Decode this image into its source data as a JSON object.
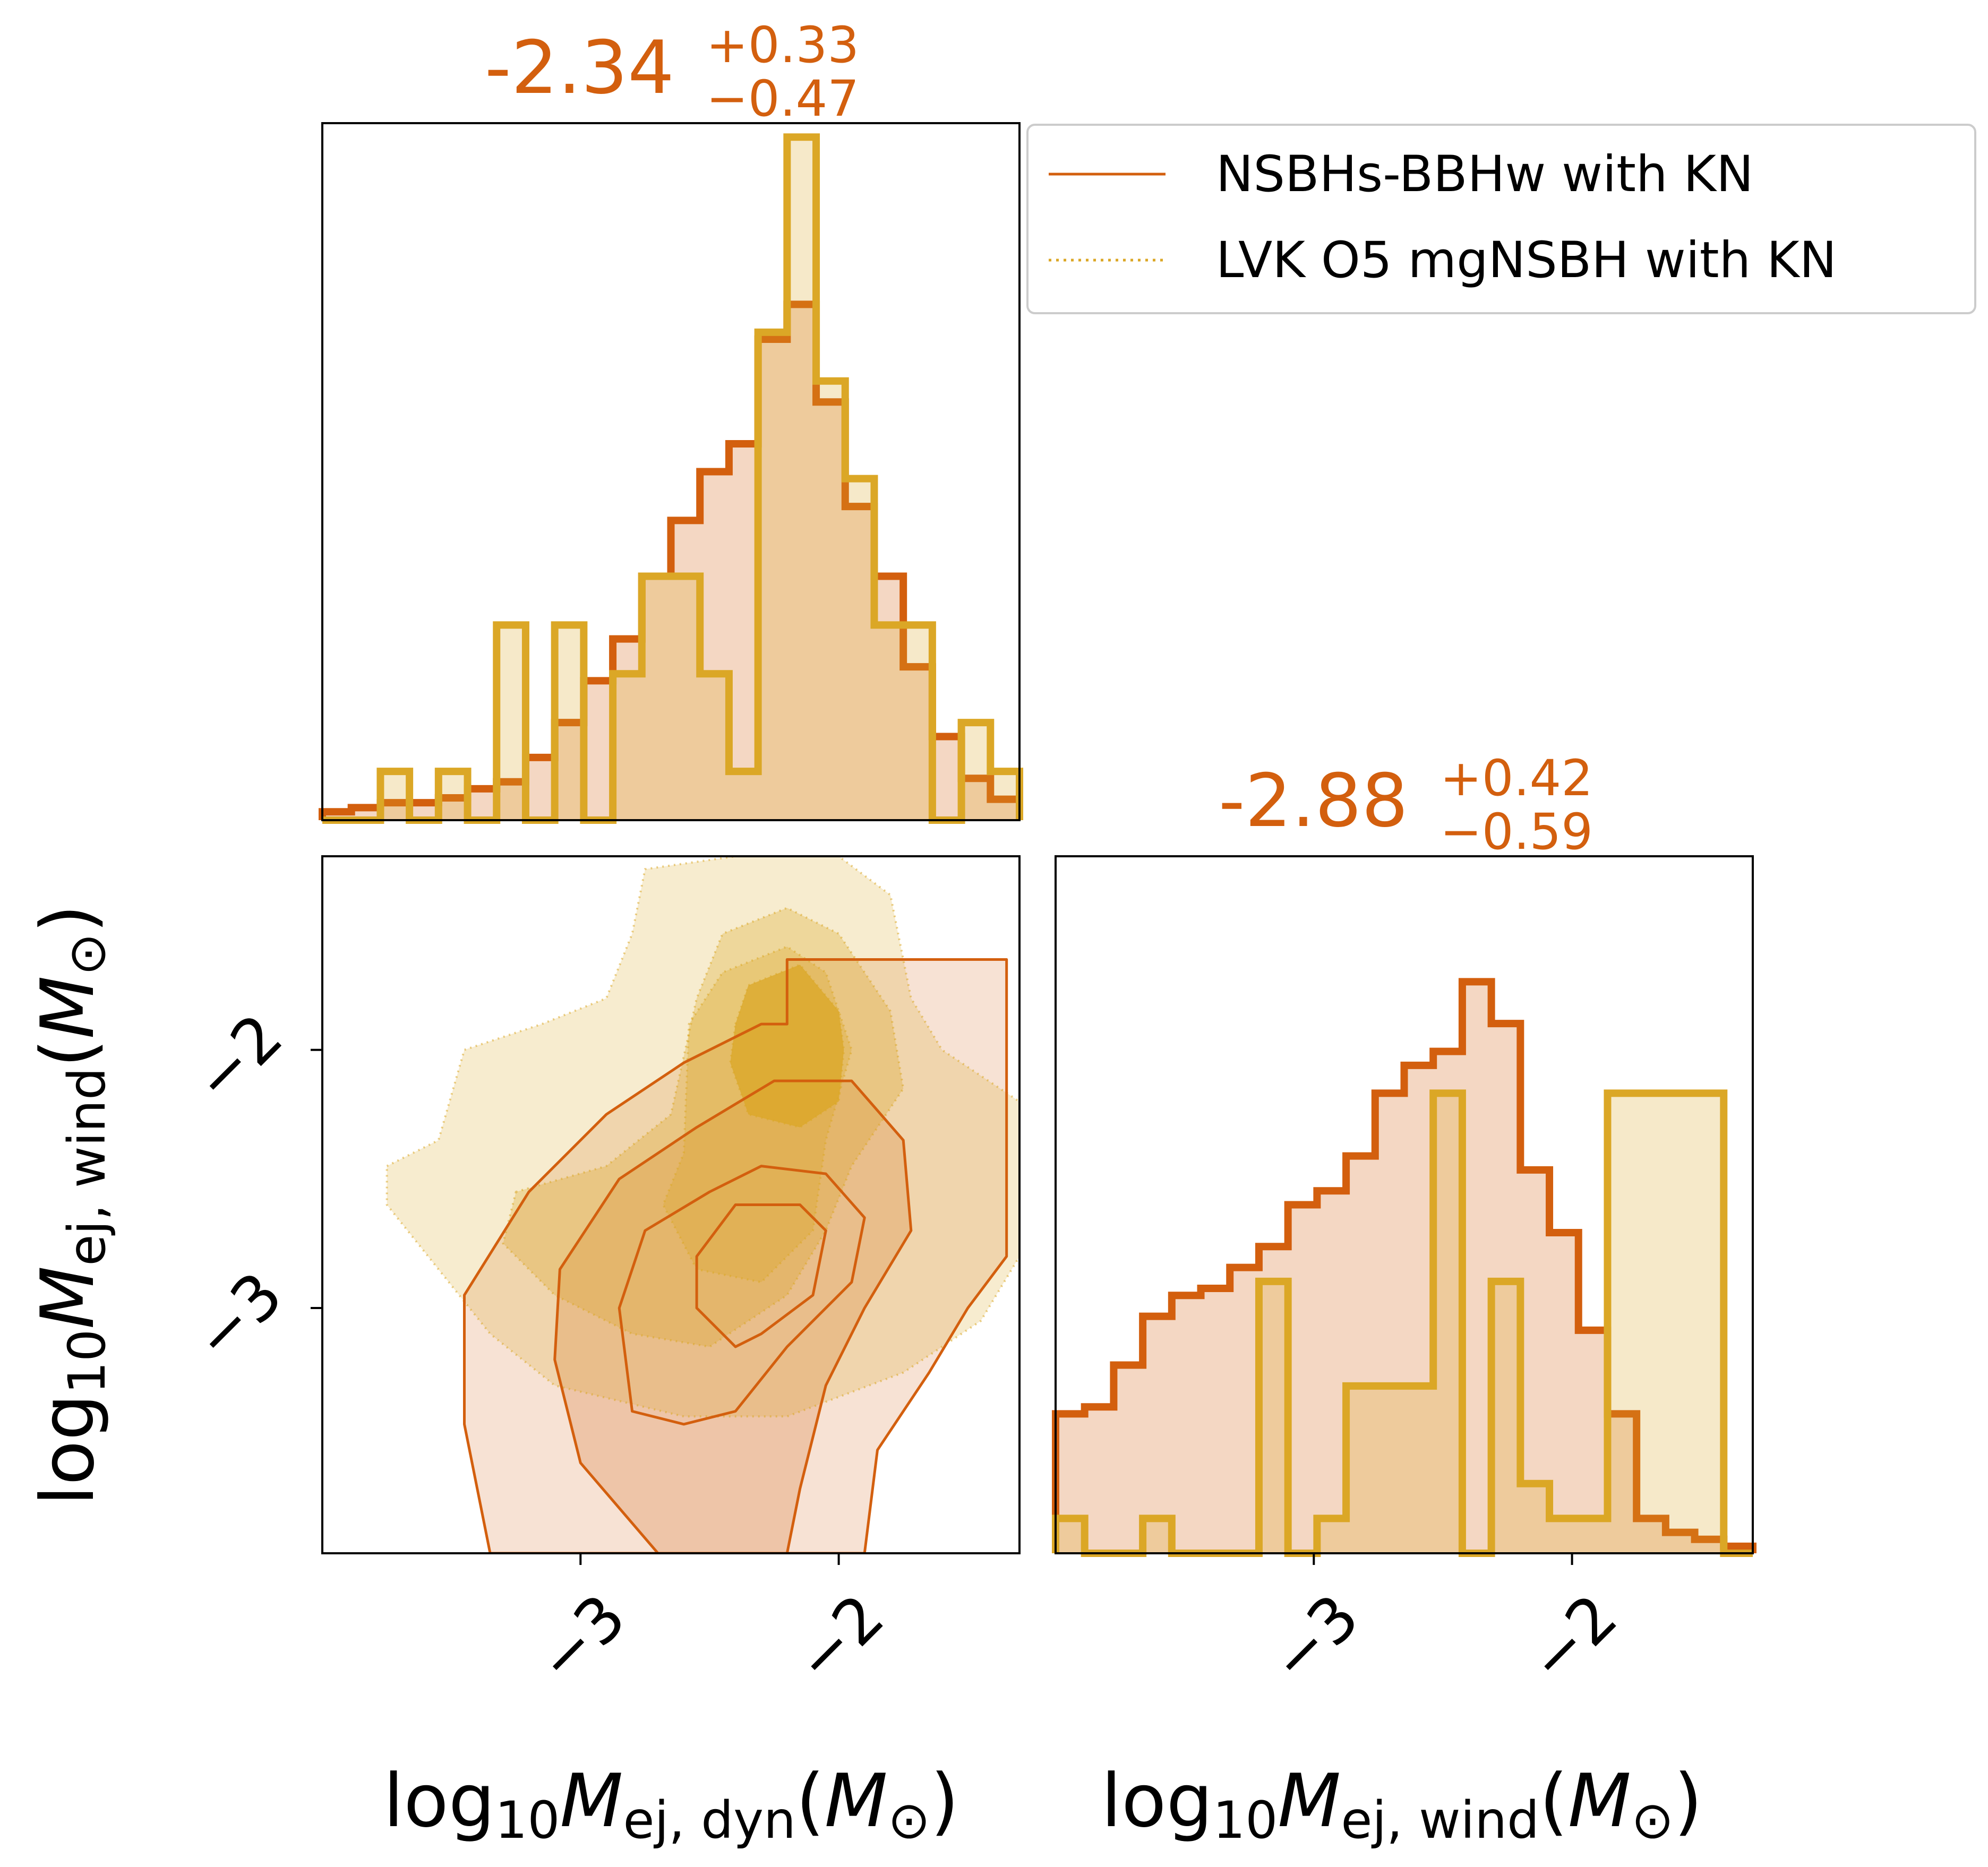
{
  "legend": {
    "placement": "top-right",
    "entries": [
      {
        "label": "NSBHs-BBHw with KN",
        "color": "#d35f0e",
        "line_style": "solid"
      },
      {
        "label": "LVK O5 mgNSBH with KN",
        "color": "#dba726",
        "line_style": "dotted"
      }
    ]
  },
  "summaries": [
    {
      "parameter": "log10 M_ej,dyn",
      "median": "-2.34",
      "upper": "+0.33",
      "lower": "−0.47"
    },
    {
      "parameter": "log10 M_ej,wind",
      "median": "-2.88",
      "upper": "+0.42",
      "lower": "−0.59"
    }
  ],
  "axis_labels": {
    "dyn": {
      "base": "log",
      "sub10": "10",
      "M": "M",
      "sub": "ej, dyn",
      "lp": "(",
      "sym": "M",
      "sun": "⊙",
      "rp": ")"
    },
    "wind": {
      "base": "log",
      "sub10": "10",
      "M": "M",
      "sub": "ej, wind",
      "lp": "(",
      "sym": "M",
      "sun": "⊙",
      "rp": ")"
    }
  },
  "ticks": {
    "dyn_x": [
      "−3",
      "−2"
    ],
    "wind_x": [
      "−3",
      "−2"
    ],
    "wind_y": [
      "−2",
      "−3"
    ]
  },
  "chart_data": [
    {
      "type": "histogram",
      "panel": "dyn-marginal",
      "xlim": [
        -4.0,
        -1.3
      ],
      "bin_edges": [
        -4.0,
        -3.8875,
        -3.775,
        -3.6625,
        -3.55,
        -3.4375,
        -3.325,
        -3.2125,
        -3.1,
        -2.9875,
        -2.875,
        -2.7625,
        -2.65,
        -2.5375,
        -2.425,
        -2.3125,
        -2.2,
        -2.0875,
        -1.975,
        -1.8625,
        -1.75,
        -1.6375,
        -1.525,
        -1.4125,
        -1.3
      ],
      "series": [
        {
          "name": "NSBHs-BBHw with KN",
          "color": "#d35f0e",
          "values": [
            0.012,
            0.018,
            0.025,
            0.025,
            0.032,
            0.045,
            0.055,
            0.09,
            0.14,
            0.2,
            0.26,
            0.35,
            0.43,
            0.5,
            0.54,
            0.69,
            0.74,
            0.6,
            0.45,
            0.35,
            0.22,
            0.12,
            0.06,
            0.03
          ]
        },
        {
          "name": "LVK O5 mgNSBH with KN",
          "color": "#dba726",
          "values": [
            0.0,
            0.0,
            0.07,
            0.0,
            0.07,
            0.0,
            0.28,
            0.0,
            0.28,
            0.0,
            0.21,
            0.35,
            0.35,
            0.21,
            0.07,
            0.7,
            0.98,
            0.63,
            0.49,
            0.28,
            0.28,
            0.0,
            0.14,
            0.07
          ]
        }
      ]
    },
    {
      "type": "histogram",
      "panel": "wind-marginal",
      "xlim": [
        -4.0,
        -1.3
      ],
      "bin_edges": [
        -4.0,
        -3.8875,
        -3.775,
        -3.6625,
        -3.55,
        -3.4375,
        -3.325,
        -3.2125,
        -3.1,
        -2.9875,
        -2.875,
        -2.7625,
        -2.65,
        -2.5375,
        -2.425,
        -2.3125,
        -2.2,
        -2.0875,
        -1.975,
        -1.8625,
        -1.75,
        -1.6375,
        -1.525,
        -1.4125,
        -1.3
      ],
      "series": [
        {
          "name": "NSBHs-BBHw with KN",
          "color": "#d35f0e",
          "values": [
            0.2,
            0.21,
            0.27,
            0.34,
            0.37,
            0.38,
            0.41,
            0.44,
            0.5,
            0.52,
            0.57,
            0.66,
            0.7,
            0.72,
            0.82,
            0.76,
            0.55,
            0.46,
            0.32,
            0.2,
            0.05,
            0.03,
            0.02,
            0.01
          ]
        },
        {
          "name": "LVK O5 mgNSBH with KN",
          "color": "#dba726",
          "values": [
            0.05,
            0.0,
            0.0,
            0.05,
            0.0,
            0.0,
            0.0,
            0.39,
            0.0,
            0.05,
            0.24,
            0.24,
            0.24,
            0.66,
            0.0,
            0.39,
            0.1,
            0.05,
            0.05,
            0.66,
            0.66,
            0.66,
            0.66,
            0.0
          ]
        }
      ]
    },
    {
      "type": "contour",
      "panel": "joint",
      "x": "log10 M_ej,dyn",
      "y": "log10 M_ej,wind",
      "xlim": [
        -4.0,
        -1.3
      ],
      "ylim": [
        -3.95,
        -1.25
      ],
      "series": [
        {
          "name": "LVK O5 mgNSBH with KN",
          "color": "#dba726",
          "style": "filled-dotted",
          "levels": [
            {
              "level": 1,
              "points": [
                [
                  -3.75,
                  -2.45
                ],
                [
                  -3.55,
                  -2.35
                ],
                [
                  -3.45,
                  -2.0
                ],
                [
                  -3.15,
                  -1.9
                ],
                [
                  -2.9,
                  -1.8
                ],
                [
                  -2.8,
                  -1.55
                ],
                [
                  -2.75,
                  -1.3
                ],
                [
                  -2.4,
                  -1.25
                ],
                [
                  -2.0,
                  -1.25
                ],
                [
                  -1.8,
                  -1.4
                ],
                [
                  -1.72,
                  -1.8
                ],
                [
                  -1.6,
                  -2.0
                ],
                [
                  -1.3,
                  -2.2
                ],
                [
                  -1.3,
                  -2.8
                ],
                [
                  -1.45,
                  -3.05
                ],
                [
                  -1.75,
                  -3.25
                ],
                [
                  -2.2,
                  -3.42
                ],
                [
                  -2.6,
                  -3.42
                ],
                [
                  -3.1,
                  -3.3
                ],
                [
                  -3.35,
                  -3.1
                ],
                [
                  -3.55,
                  -2.85
                ],
                [
                  -3.75,
                  -2.6
                ]
              ]
            },
            {
              "level": 2,
              "points": [
                [
                  -3.25,
                  -2.55
                ],
                [
                  -2.9,
                  -2.45
                ],
                [
                  -2.65,
                  -2.25
                ],
                [
                  -2.55,
                  -1.8
                ],
                [
                  -2.45,
                  -1.55
                ],
                [
                  -2.2,
                  -1.45
                ],
                [
                  -2.0,
                  -1.55
                ],
                [
                  -1.8,
                  -1.85
                ],
                [
                  -1.75,
                  -2.15
                ],
                [
                  -1.95,
                  -2.45
                ],
                [
                  -2.05,
                  -2.7
                ],
                [
                  -2.2,
                  -2.95
                ],
                [
                  -2.5,
                  -3.15
                ],
                [
                  -2.8,
                  -3.1
                ],
                [
                  -3.1,
                  -2.95
                ],
                [
                  -3.3,
                  -2.75
                ]
              ]
            },
            {
              "level": 3,
              "points": [
                [
                  -2.6,
                  -2.4
                ],
                [
                  -2.58,
                  -1.9
                ],
                [
                  -2.45,
                  -1.7
                ],
                [
                  -2.2,
                  -1.6
                ],
                [
                  -2.05,
                  -1.7
                ],
                [
                  -1.95,
                  -2.0
                ],
                [
                  -2.05,
                  -2.35
                ],
                [
                  -2.1,
                  -2.7
                ],
                [
                  -2.3,
                  -2.9
                ],
                [
                  -2.55,
                  -2.85
                ],
                [
                  -2.68,
                  -2.6
                ]
              ]
            },
            {
              "level": 4,
              "points": [
                [
                  -2.4,
                  -1.9
                ],
                [
                  -2.35,
                  -1.75
                ],
                [
                  -2.15,
                  -1.67
                ],
                [
                  -2.0,
                  -1.85
                ],
                [
                  -1.98,
                  -2.0
                ],
                [
                  -2.0,
                  -2.2
                ],
                [
                  -2.15,
                  -2.3
                ],
                [
                  -2.35,
                  -2.25
                ],
                [
                  -2.42,
                  -2.05
                ]
              ]
            }
          ]
        },
        {
          "name": "NSBHs-BBHw with KN",
          "color": "#d35f0e",
          "style": "line-with-fill",
          "levels": [
            {
              "level": 1,
              "points": [
                [
                  -3.35,
                  -3.95
                ],
                [
                  -3.45,
                  -3.45
                ],
                [
                  -3.45,
                  -2.95
                ],
                [
                  -3.2,
                  -2.55
                ],
                [
                  -2.9,
                  -2.25
                ],
                [
                  -2.6,
                  -2.05
                ],
                [
                  -2.3,
                  -1.9
                ],
                [
                  -2.2,
                  -1.9
                ],
                [
                  -2.2,
                  -1.65
                ],
                [
                  -1.35,
                  -1.65
                ],
                [
                  -1.35,
                  -2.8
                ],
                [
                  -1.5,
                  -3.0
                ],
                [
                  -1.65,
                  -3.25
                ],
                [
                  -1.85,
                  -3.55
                ],
                [
                  -1.9,
                  -3.95
                ]
              ]
            },
            {
              "level": 2,
              "points": [
                [
                  -2.7,
                  -3.95
                ],
                [
                  -3.0,
                  -3.6
                ],
                [
                  -3.1,
                  -3.2
                ],
                [
                  -3.08,
                  -2.85
                ],
                [
                  -2.85,
                  -2.5
                ],
                [
                  -2.55,
                  -2.3
                ],
                [
                  -2.25,
                  -2.12
                ],
                [
                  -1.95,
                  -2.12
                ],
                [
                  -1.75,
                  -2.35
                ],
                [
                  -1.72,
                  -2.7
                ],
                [
                  -1.9,
                  -3.0
                ],
                [
                  -2.05,
                  -3.3
                ],
                [
                  -2.15,
                  -3.7
                ],
                [
                  -2.2,
                  -3.95
                ]
              ]
            },
            {
              "level": 3,
              "points": [
                [
                  -2.8,
                  -3.4
                ],
                [
                  -2.85,
                  -3.0
                ],
                [
                  -2.75,
                  -2.7
                ],
                [
                  -2.5,
                  -2.55
                ],
                [
                  -2.3,
                  -2.45
                ],
                [
                  -2.05,
                  -2.48
                ],
                [
                  -1.9,
                  -2.65
                ],
                [
                  -1.95,
                  -2.9
                ],
                [
                  -2.2,
                  -3.15
                ],
                [
                  -2.4,
                  -3.4
                ],
                [
                  -2.6,
                  -3.45
                ]
              ]
            },
            {
              "level": 4,
              "points": [
                [
                  -2.55,
                  -3.0
                ],
                [
                  -2.55,
                  -2.8
                ],
                [
                  -2.4,
                  -2.6
                ],
                [
                  -2.15,
                  -2.6
                ],
                [
                  -2.05,
                  -2.7
                ],
                [
                  -2.1,
                  -2.95
                ],
                [
                  -2.3,
                  -3.1
                ],
                [
                  -2.4,
                  -3.15
                ]
              ]
            }
          ]
        }
      ]
    }
  ]
}
